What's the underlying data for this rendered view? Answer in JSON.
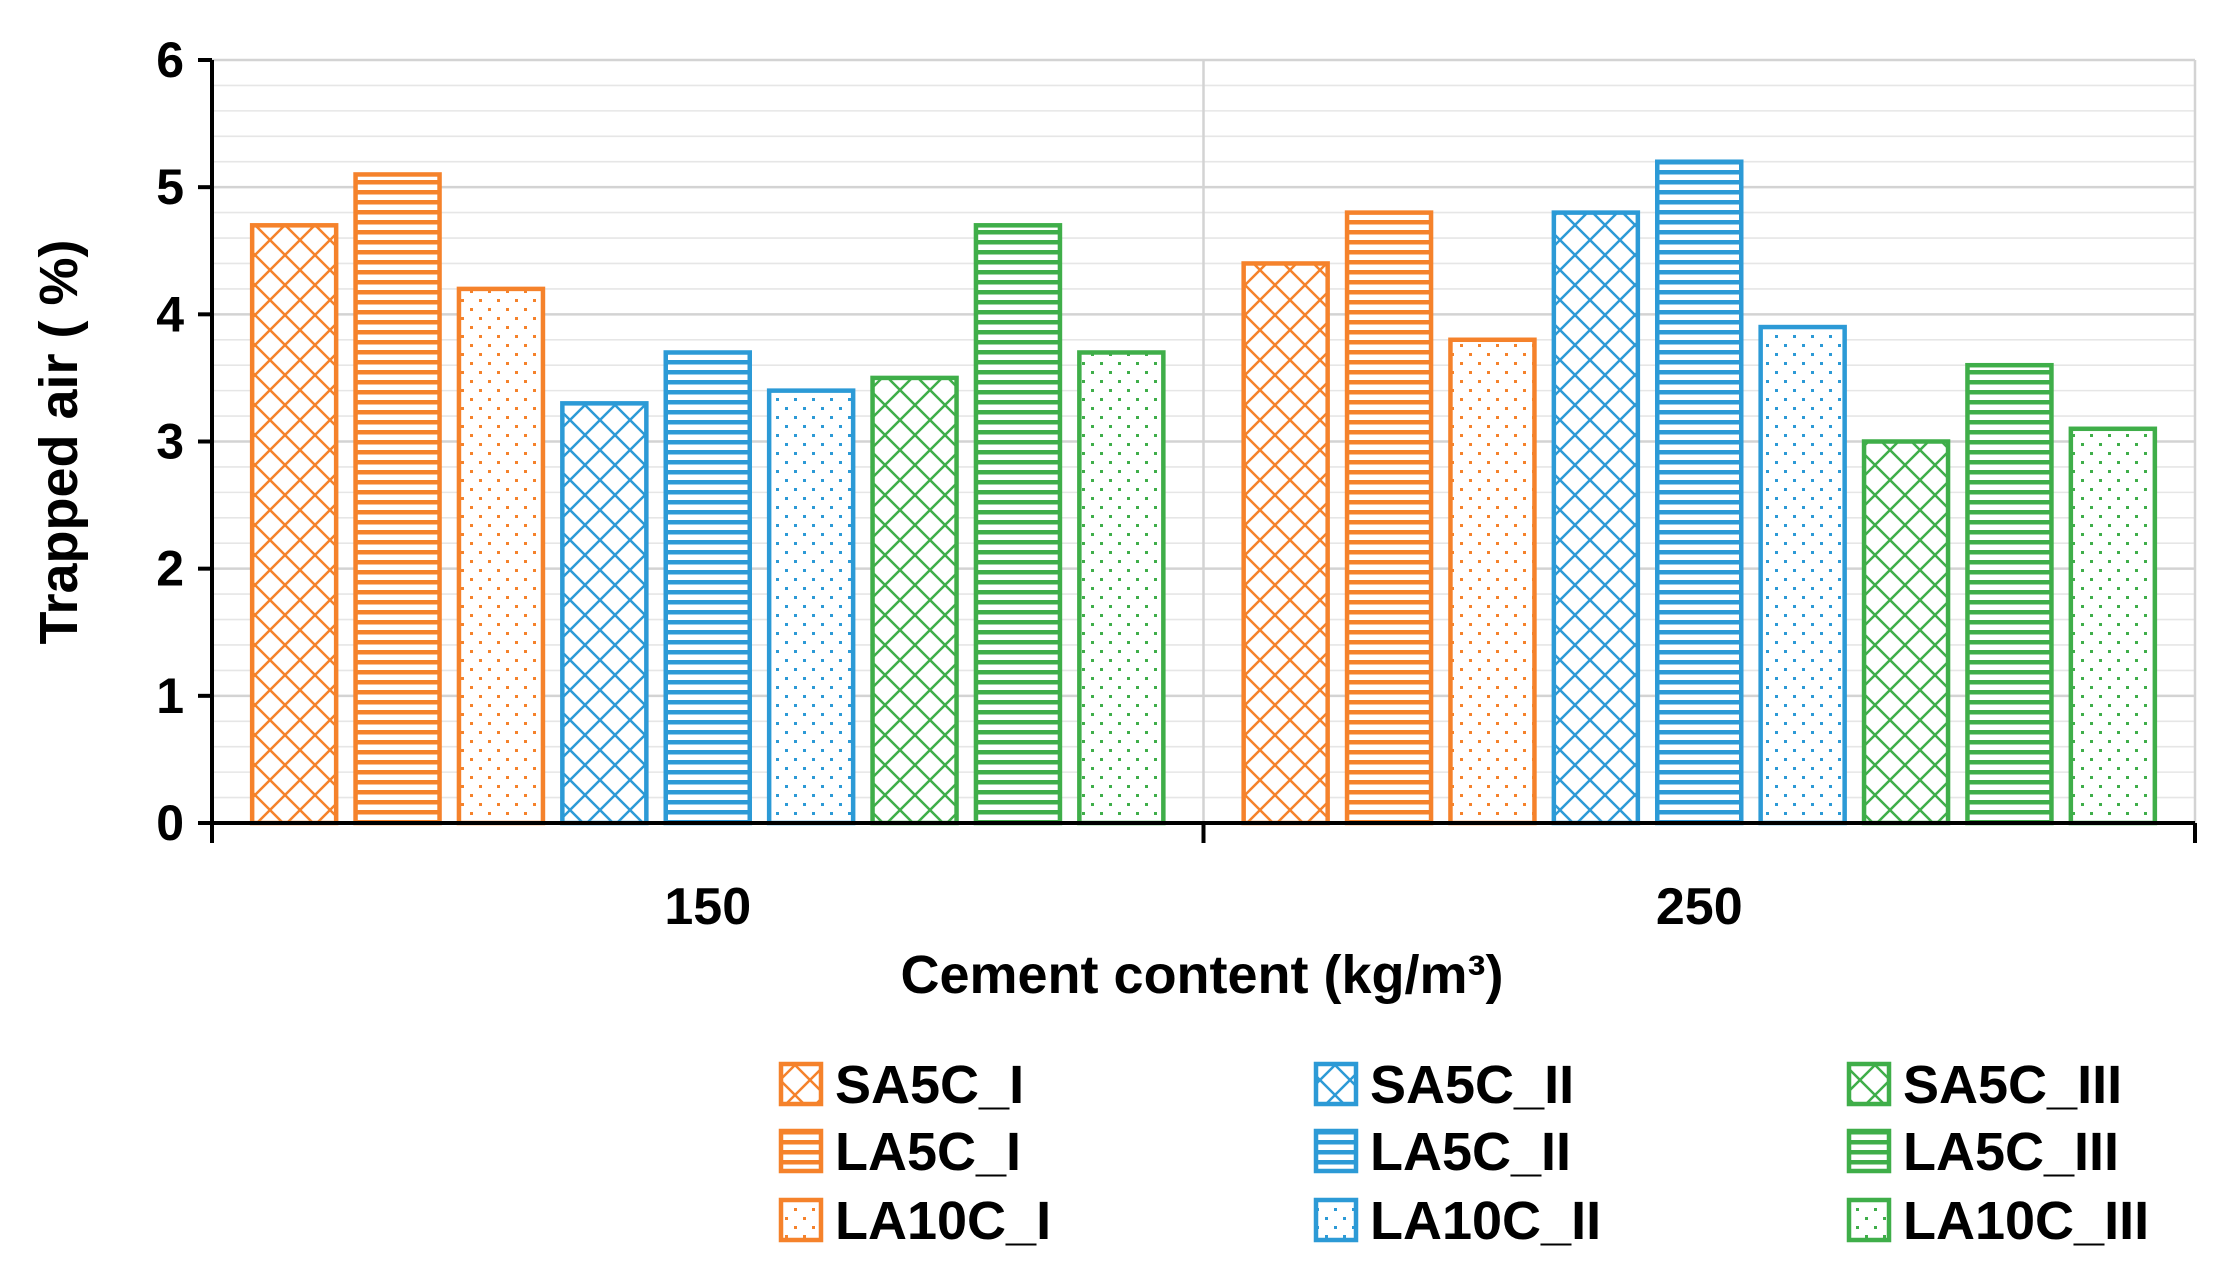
{
  "chart_data": {
    "type": "bar",
    "title": "",
    "xlabel": "Cement content (kg/m³)",
    "ylabel": "Trapped air ( %)",
    "categories": [
      "150",
      "250"
    ],
    "ylim": [
      0,
      6
    ],
    "yticks": [
      0,
      1,
      2,
      3,
      4,
      5,
      6
    ],
    "minor_gridlines": true,
    "legend_position": "bottom-right",
    "series": [
      {
        "name": "SA5C_I",
        "color": "#F5822B",
        "pattern": "crosshatch",
        "values": [
          4.7,
          4.4
        ]
      },
      {
        "name": "LA5C_I",
        "color": "#F5822B",
        "pattern": "horizontal",
        "values": [
          5.1,
          4.8
        ]
      },
      {
        "name": "LA10C_I",
        "color": "#F5822B",
        "pattern": "dots",
        "values": [
          4.2,
          3.8
        ]
      },
      {
        "name": "SA5C_II",
        "color": "#2C9AD6",
        "pattern": "crosshatch",
        "values": [
          3.3,
          4.8
        ]
      },
      {
        "name": "LA5C_II",
        "color": "#2C9AD6",
        "pattern": "horizontal",
        "values": [
          3.7,
          5.2
        ]
      },
      {
        "name": "LA10C_II",
        "color": "#2C9AD6",
        "pattern": "dots",
        "values": [
          3.4,
          3.9
        ]
      },
      {
        "name": "SA5C_III",
        "color": "#3FAE49",
        "pattern": "crosshatch",
        "values": [
          3.5,
          3.0
        ]
      },
      {
        "name": "LA5C_III",
        "color": "#3FAE49",
        "pattern": "horizontal",
        "values": [
          4.7,
          3.6
        ]
      },
      {
        "name": "LA10C_III",
        "color": "#3FAE49",
        "pattern": "dots",
        "values": [
          3.7,
          3.1
        ]
      }
    ]
  }
}
